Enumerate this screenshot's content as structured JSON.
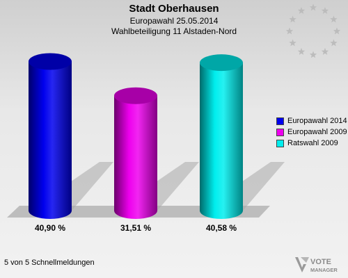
{
  "header": {
    "title": "Stadt Oberhausen",
    "subtitle1": "Europawahl 25.05.2014",
    "subtitle2": "Wahlbeteiligung 11 Alstaden-Nord"
  },
  "chart_data": {
    "type": "bar",
    "categories": [
      "Europawahl 2014",
      "Europawahl 2009",
      "Ratswahl 2009"
    ],
    "values": [
      40.9,
      31.51,
      40.58
    ],
    "value_labels": [
      "40,90 %",
      "31,51 %",
      "40,58 %"
    ],
    "colors": [
      "#0000ee",
      "#ee00ee",
      "#00eeee"
    ],
    "ylim": [
      0,
      45
    ],
    "legend_position": "right",
    "grid": false
  },
  "footer": {
    "text": "5 von 5 Schnellmeldungen"
  },
  "logo": {
    "line1": "VOTE",
    "line2": "MANAGER"
  }
}
